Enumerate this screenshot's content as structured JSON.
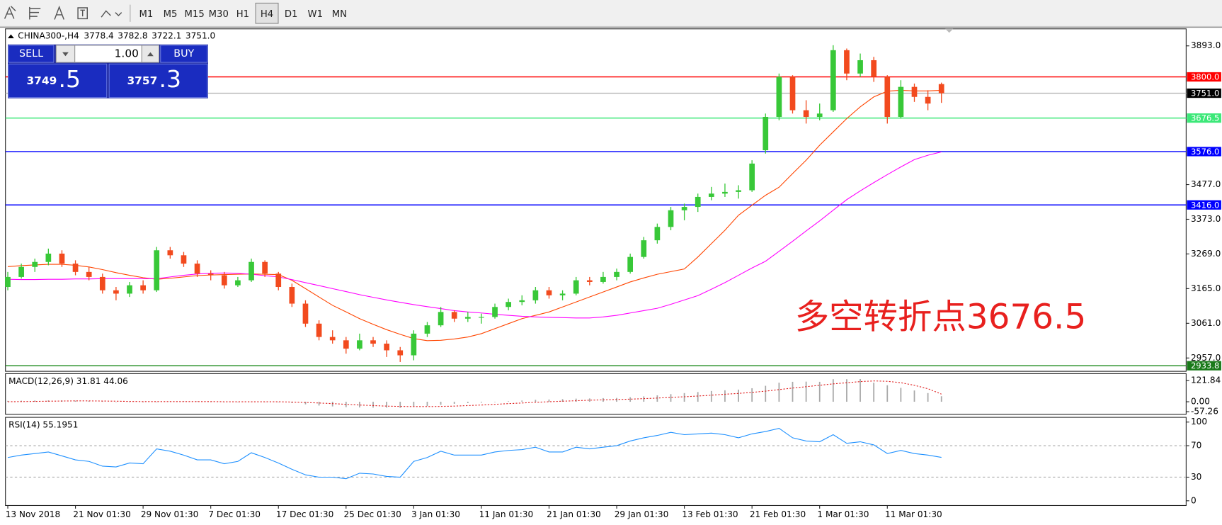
{
  "toolbar": {
    "timeframes": [
      "M1",
      "M5",
      "M15",
      "M30",
      "H1",
      "H4",
      "D1",
      "W1",
      "MN"
    ],
    "active": "H4"
  },
  "trade_panel": {
    "sell": "SELL",
    "volume": "1.00",
    "buy": "BUY",
    "bid": [
      "3749",
      ".5"
    ],
    "ask": [
      "3757",
      ".3"
    ]
  },
  "chart_data": [
    {
      "type": "candlestick",
      "title": "CHINA300-,H4",
      "header_values": [
        "3778.4",
        "3782.8",
        "3722.1",
        "3751.0"
      ],
      "categories": [
        "13 Nov 2018",
        null,
        null,
        null,
        null,
        "21 Nov 01:30",
        null,
        null,
        null,
        null,
        "29 Nov 01:30",
        null,
        null,
        null,
        null,
        "7 Dec 01:30",
        null,
        null,
        null,
        null,
        "17 Dec 01:30",
        null,
        null,
        null,
        null,
        "25 Dec 01:30",
        null,
        null,
        null,
        null,
        "3 Jan 01:30",
        null,
        null,
        null,
        null,
        "11 Jan 01:30",
        null,
        null,
        null,
        null,
        "21 Jan 01:30",
        null,
        null,
        null,
        null,
        "29 Jan 01:30",
        null,
        null,
        null,
        null,
        "13 Feb 01:30",
        null,
        null,
        null,
        null,
        "21 Feb 01:30",
        null,
        null,
        null,
        null,
        "1 Mar 01:30",
        null,
        null,
        null,
        null,
        "11 Mar 01:30",
        null,
        null,
        null,
        null
      ],
      "open": [
        3170,
        3200,
        3230,
        3245,
        3270,
        3240,
        3215,
        3200,
        3160,
        3150,
        3175,
        3160,
        3280,
        3265,
        3240,
        3210,
        3205,
        3175,
        3190,
        3245,
        3210,
        3170,
        3120,
        3060,
        3020,
        3010,
        2985,
        3010,
        3000,
        2980,
        2965,
        3030,
        3055,
        3095,
        3075,
        3080,
        3080,
        3110,
        3125,
        3130,
        3160,
        3145,
        3150,
        3190,
        3185,
        3200,
        3215,
        3260,
        3310,
        3350,
        3400,
        3410,
        3440,
        3450,
        3455,
        3460,
        3580,
        3680,
        3800,
        3700,
        3680,
        3700,
        3880,
        3810,
        3850,
        3800,
        3680,
        3770,
        3740,
        3778.4
      ],
      "high": [
        3215,
        3240,
        3255,
        3285,
        3280,
        3250,
        3230,
        3210,
        3170,
        3185,
        3190,
        3290,
        3290,
        3275,
        3250,
        3220,
        3215,
        3200,
        3255,
        3250,
        3215,
        3180,
        3130,
        3070,
        3040,
        3020,
        3030,
        3020,
        3010,
        2990,
        3040,
        3065,
        3110,
        3100,
        3095,
        3090,
        3120,
        3135,
        3145,
        3170,
        3170,
        3160,
        3200,
        3200,
        3215,
        3225,
        3270,
        3320,
        3360,
        3410,
        3420,
        3450,
        3470,
        3480,
        3475,
        3550,
        3690,
        3810,
        3805,
        3730,
        3720,
        3895,
        3885,
        3870,
        3860,
        3805,
        3790,
        3780,
        3760,
        3782.8
      ],
      "low": [
        3160,
        3195,
        3215,
        3235,
        3230,
        3205,
        3190,
        3150,
        3130,
        3140,
        3150,
        3155,
        3255,
        3230,
        3200,
        3190,
        3165,
        3170,
        3185,
        3200,
        3160,
        3110,
        3050,
        3010,
        3000,
        2970,
        2980,
        2990,
        2960,
        2945,
        2950,
        3020,
        3050,
        3065,
        3065,
        3060,
        3075,
        3100,
        3115,
        3120,
        3135,
        3130,
        3145,
        3175,
        3180,
        3190,
        3210,
        3255,
        3300,
        3340,
        3370,
        3395,
        3430,
        3440,
        3435,
        3455,
        3570,
        3670,
        3690,
        3660,
        3670,
        3695,
        3790,
        3800,
        3785,
        3660,
        3675,
        3725,
        3700,
        3722.1
      ],
      "close": [
        3200,
        3230,
        3245,
        3270,
        3240,
        3215,
        3200,
        3160,
        3150,
        3175,
        3160,
        3280,
        3265,
        3240,
        3210,
        3205,
        3175,
        3190,
        3245,
        3210,
        3170,
        3120,
        3060,
        3020,
        3010,
        2985,
        3010,
        3000,
        2980,
        2965,
        3030,
        3055,
        3095,
        3075,
        3080,
        3080,
        3110,
        3125,
        3130,
        3160,
        3145,
        3150,
        3190,
        3185,
        3200,
        3215,
        3260,
        3310,
        3350,
        3400,
        3410,
        3440,
        3450,
        3455,
        3460,
        3540,
        3680,
        3800,
        3700,
        3680,
        3690,
        3880,
        3810,
        3850,
        3800,
        3680,
        3770,
        3740,
        3720,
        3751.0
      ],
      "up_color": "#38c838",
      "down_color": "#f24a1e",
      "series": [
        {
          "color": "#ff4500",
          "values": [
            3231,
            3234,
            3236,
            3238,
            3238,
            3235,
            3230,
            3222,
            3213,
            3205,
            3198,
            3193,
            3196,
            3200,
            3204,
            3206,
            3207,
            3208,
            3209,
            3208,
            3207,
            3190,
            3165,
            3140,
            3115,
            3095,
            3075,
            3058,
            3042,
            3028,
            3015,
            3009,
            3010,
            3014,
            3020,
            3030,
            3045,
            3060,
            3075,
            3085,
            3095,
            3110,
            3125,
            3140,
            3155,
            3170,
            3185,
            3197,
            3208,
            3216,
            3224,
            3260,
            3300,
            3340,
            3385,
            3415,
            3445,
            3469,
            3510,
            3550,
            3595,
            3635,
            3675,
            3710,
            3740,
            3757,
            3760,
            3758,
            3758,
            3760
          ]
        },
        {
          "color": "#ff00ff",
          "values": [
            3193,
            3192,
            3192,
            3193,
            3193,
            3194,
            3194,
            3195,
            3195,
            3195,
            3195,
            3195,
            3200,
            3205,
            3209,
            3211,
            3212,
            3211,
            3208,
            3204,
            3200,
            3192,
            3183,
            3174,
            3165,
            3156,
            3147,
            3139,
            3131,
            3124,
            3117,
            3111,
            3105,
            3099,
            3095,
            3092,
            3088,
            3085,
            3082,
            3080,
            3079,
            3078,
            3077,
            3077,
            3080,
            3085,
            3092,
            3099,
            3106,
            3118,
            3131,
            3144,
            3163,
            3183,
            3205,
            3227,
            3247,
            3277,
            3307,
            3338,
            3368,
            3400,
            3432,
            3458,
            3483,
            3507,
            3530,
            3552,
            3565,
            3575
          ]
        }
      ],
      "ylim": [
        2917,
        3944
      ],
      "yticks": [
        {
          "value": 3893,
          "label": "3893.0"
        },
        {
          "value": 3477,
          "label": "3477.0"
        },
        {
          "value": 3373,
          "label": "3373.0"
        },
        {
          "value": 3269,
          "label": "3269.0"
        },
        {
          "value": 3165,
          "label": "3165.0"
        },
        {
          "value": 3061,
          "label": "3061.0"
        },
        {
          "value": 2957,
          "label": "2957.0"
        }
      ],
      "hlines": [
        {
          "value": 3800,
          "label": "3800.0",
          "color": "#ff0000",
          "tag_color": "#ff0000"
        },
        {
          "value": 3751,
          "label": "3751.0",
          "color": "#b4b4b4",
          "tag_color": "#000000"
        },
        {
          "value": 3676.5,
          "label": "3676.5",
          "color": "#3ce878",
          "tag_color": "#3ce878"
        },
        {
          "value": 3576,
          "label": "3576.0",
          "color": "#0000ff",
          "tag_color": "#0000ff"
        },
        {
          "value": 3416,
          "label": "3416.0",
          "color": "#0000ff",
          "tag_color": "#0000ff"
        },
        {
          "value": 2933.8,
          "label": "2933.8",
          "color": "#1a8a1a",
          "tag_color": "#1a7a1a"
        }
      ],
      "annotation": "多空转折点3676.5"
    },
    {
      "type": "macd",
      "title": "MACD(12,26,9) 31.81 44.06",
      "histogram": [
        5,
        6,
        7,
        8,
        8,
        6,
        4,
        2,
        0,
        -2,
        -3,
        0,
        2,
        3,
        2,
        0,
        -1,
        -1,
        0,
        0,
        -2,
        -8,
        -15,
        -22,
        -27,
        -31,
        -33,
        -34,
        -34,
        -35,
        -30,
        -25,
        -18,
        -12,
        -8,
        -5,
        -1,
        3,
        7,
        11,
        13,
        15,
        18,
        19,
        21,
        22,
        26,
        31,
        37,
        44,
        50,
        56,
        62,
        66,
        70,
        78,
        92,
        110,
        115,
        116,
        115,
        130,
        130,
        131,
        110,
        95,
        80,
        65,
        50,
        31.81
      ],
      "signal": [
        0,
        1,
        2,
        3,
        4,
        5,
        5,
        4,
        3,
        2,
        1,
        1,
        1,
        1,
        1,
        1,
        0,
        0,
        0,
        0,
        0,
        -2,
        -4,
        -7,
        -11,
        -15,
        -19,
        -22,
        -25,
        -27,
        -28,
        -28,
        -27,
        -25,
        -22,
        -19,
        -15,
        -11,
        -7,
        -3,
        0,
        3,
        6,
        9,
        11,
        13,
        15,
        18,
        21,
        25,
        29,
        33,
        38,
        43,
        48,
        54,
        61,
        70,
        79,
        87,
        95,
        103,
        110,
        116,
        120,
        118,
        110,
        95,
        75,
        44.06
      ],
      "histogram_color": "#a8a8a8",
      "signal_color": "#e02020",
      "ylim": [
        -72,
        162
      ],
      "yticks": [
        121.84,
        {
          "value": 0,
          "label": "0.00"
        },
        -57.26
      ]
    },
    {
      "type": "rsi",
      "title": "RSI(14) 55.1951",
      "values": [
        55,
        58,
        60,
        62,
        57,
        52,
        50,
        44,
        43,
        48,
        47,
        66,
        63,
        58,
        52,
        52,
        47,
        50,
        61,
        55,
        48,
        40,
        33,
        30,
        30,
        28,
        35,
        34,
        31,
        30,
        50,
        55,
        63,
        58,
        58,
        58,
        62,
        64,
        65,
        68,
        62,
        62,
        68,
        66,
        68,
        70,
        76,
        80,
        83,
        87,
        84,
        85,
        86,
        84,
        80,
        85,
        88,
        92,
        80,
        76,
        75,
        84,
        73,
        75,
        71,
        60,
        64,
        60,
        58,
        55.1951
      ],
      "color": "#1e90ff",
      "ylim": [
        -6,
        106
      ],
      "yticks": [
        100,
        70,
        30,
        0
      ],
      "levels": [
        70,
        30
      ]
    }
  ]
}
